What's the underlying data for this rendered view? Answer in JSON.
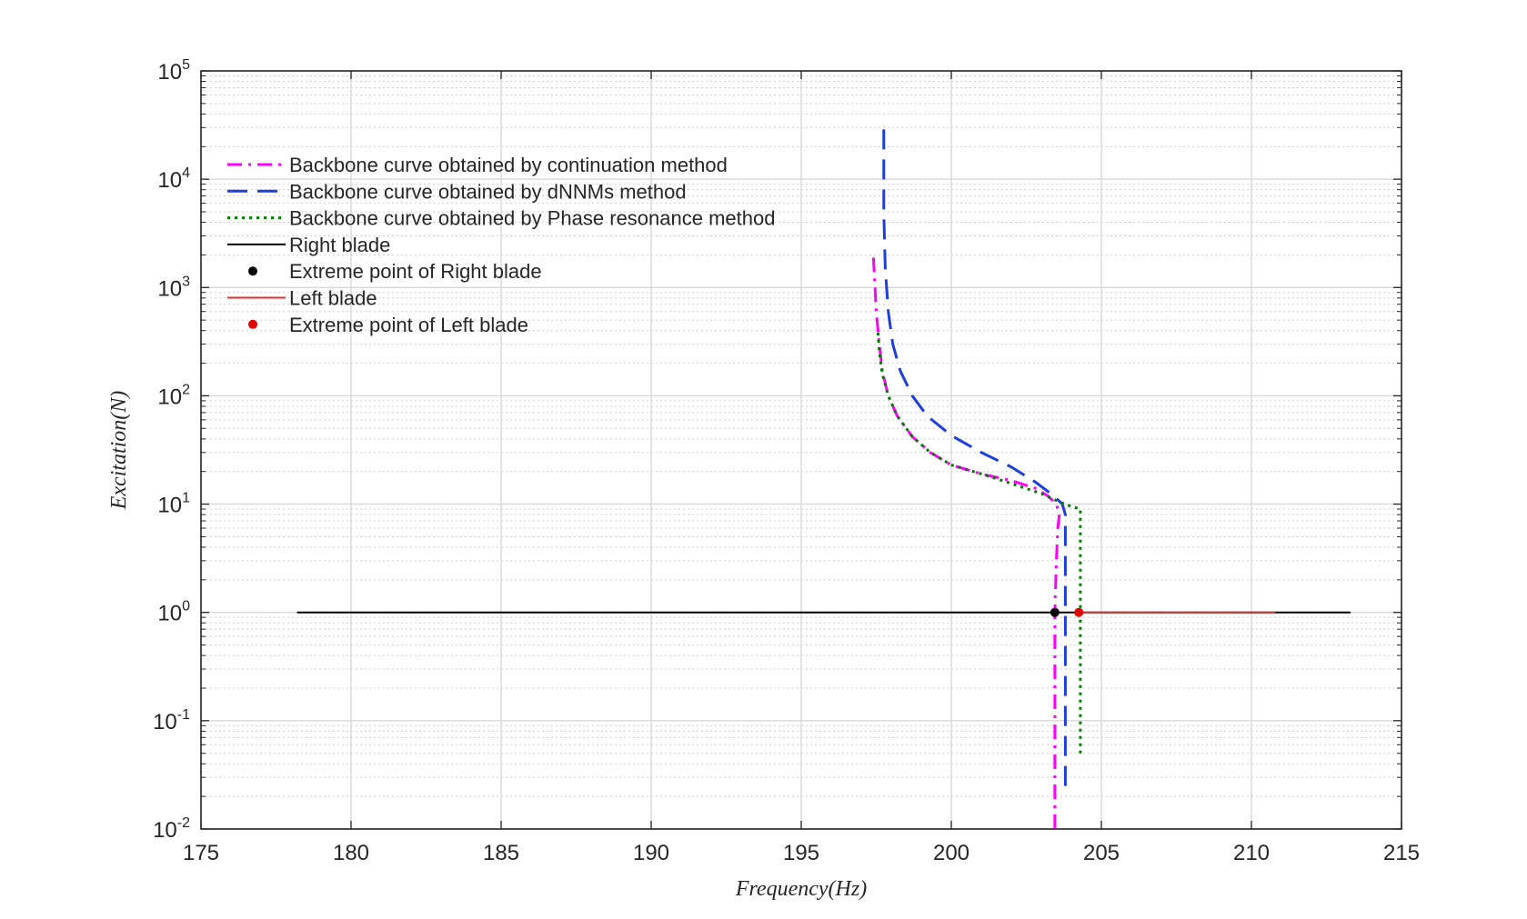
{
  "chart_data": {
    "type": "line",
    "xlabel": "Frequency(Hz)",
    "ylabel": "Excitation(N)",
    "xlim": [
      175,
      215
    ],
    "ylim": [
      0.01,
      100000
    ],
    "yscale": "log",
    "grid": true,
    "minor_grid": true,
    "legend_position": "top-left",
    "x_ticks": [
      175,
      180,
      185,
      190,
      195,
      200,
      205,
      210,
      215
    ],
    "y_ticks": [
      {
        "base": "10",
        "exp": "-2",
        "value": 0.01
      },
      {
        "base": "10",
        "exp": "-1",
        "value": 0.1
      },
      {
        "base": "10",
        "exp": "0",
        "value": 1
      },
      {
        "base": "10",
        "exp": "1",
        "value": 10
      },
      {
        "base": "10",
        "exp": "2",
        "value": 100
      },
      {
        "base": "10",
        "exp": "3",
        "value": 1000
      },
      {
        "base": "10",
        "exp": "4",
        "value": 10000
      },
      {
        "base": "10",
        "exp": "5",
        "value": 100000
      }
    ],
    "series": [
      {
        "name": "Backbone curve obtained by continuation method",
        "color": "#ff00ff",
        "style": "dashdot",
        "marker": "none",
        "x": [
          203.45,
          203.45,
          203.45,
          203.5,
          203.55,
          203.6,
          203.5,
          203.2,
          202.8,
          202.0,
          201.0,
          200.0,
          199.3,
          198.7,
          198.2,
          197.9,
          197.7,
          197.6,
          197.5,
          197.45,
          197.4
        ],
        "y": [
          0.01,
          0.1,
          1,
          3,
          6,
          8,
          10,
          12,
          14,
          16.5,
          19,
          23,
          30,
          42,
          65,
          100,
          170,
          300,
          600,
          1100,
          2000
        ]
      },
      {
        "name": "Backbone curve obtained by dNNMs method",
        "color": "#1f3fdc",
        "style": "dashed",
        "marker": "none",
        "x": [
          203.8,
          203.8,
          203.8,
          203.8,
          203.7,
          203.4,
          202.8,
          202.0,
          201.0,
          200.0,
          199.2,
          198.7,
          198.3,
          198.05,
          197.9,
          197.8,
          197.75,
          197.75,
          197.75
        ],
        "y": [
          0.025,
          0.1,
          1,
          8,
          10,
          12,
          16,
          22,
          30,
          43,
          65,
          100,
          170,
          300,
          600,
          1500,
          5000,
          15000,
          33000
        ]
      },
      {
        "name": "Backbone curve obtained by Phase resonance method",
        "color": "#007a00",
        "style": "dotted",
        "marker": "none",
        "x": [
          204.3,
          204.3,
          204.3,
          204.3,
          204.0,
          203.6,
          203.0,
          202.0,
          201.0,
          200.0,
          199.3,
          198.7,
          198.2,
          197.9,
          197.7,
          197.6,
          197.55
        ],
        "y": [
          0.05,
          0.1,
          1,
          9,
          9.5,
          10.5,
          12.5,
          15.5,
          19,
          23,
          30,
          42,
          65,
          100,
          160,
          260,
          400
        ]
      },
      {
        "name": "Right blade",
        "color": "#000000",
        "style": "solid",
        "marker": "none",
        "x": [
          178.2,
          213.3
        ],
        "y": [
          1,
          1
        ]
      },
      {
        "name": "Extreme point of Right blade",
        "color": "#000000",
        "style": "none",
        "marker": "dot",
        "x": [
          203.45
        ],
        "y": [
          1
        ]
      },
      {
        "name": "Left blade",
        "color": "#e03030",
        "style": "solid",
        "marker": "none",
        "x": [
          204.25,
          210.8
        ],
        "y": [
          1,
          1
        ]
      },
      {
        "name": "Extreme point of Left blade",
        "color": "#e00000",
        "style": "none",
        "marker": "dot",
        "x": [
          204.25
        ],
        "y": [
          1
        ]
      }
    ]
  }
}
